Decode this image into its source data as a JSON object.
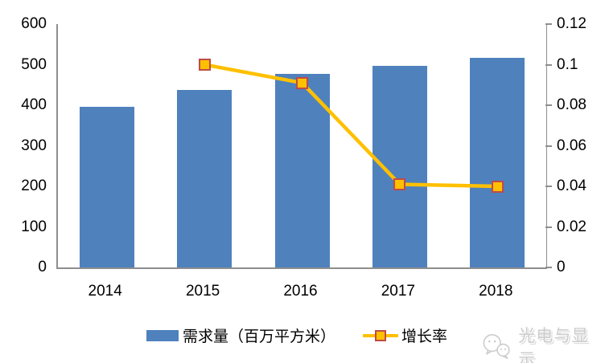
{
  "chart_data": {
    "type": "bar",
    "categories": [
      "2014",
      "2015",
      "2016",
      "2017",
      "2018"
    ],
    "series": [
      {
        "name": "需求量（百万平方米）",
        "type": "bar",
        "axis": "left",
        "values": [
          397,
          437,
          477,
          497,
          517
        ]
      },
      {
        "name": "增长率",
        "type": "line",
        "axis": "right",
        "values": [
          null,
          0.1,
          0.091,
          0.041,
          0.04
        ]
      }
    ],
    "left_axis": {
      "min": 0,
      "max": 600,
      "tick_labels": [
        "600",
        "500",
        "400",
        "300",
        "200",
        "100",
        "0"
      ]
    },
    "right_axis": {
      "min": 0,
      "max": 0.12,
      "tick_labels": [
        "0.12",
        "0.1",
        "0.08",
        "0.06",
        "0.04",
        "0.02",
        "0"
      ]
    },
    "grid": false,
    "legend_position": "bottom",
    "title": ""
  },
  "legend": {
    "demand_label": "需求量（百万平方米）",
    "growth_label": "增长率"
  },
  "watermark": {
    "text": "光电与显示"
  },
  "colors": {
    "bar": "#4F81BD",
    "line": "#FFC000",
    "marker_fill": "#FFC000",
    "marker_border": "#BE4B48",
    "axis": "#8e8e8e",
    "text": "#000000"
  }
}
